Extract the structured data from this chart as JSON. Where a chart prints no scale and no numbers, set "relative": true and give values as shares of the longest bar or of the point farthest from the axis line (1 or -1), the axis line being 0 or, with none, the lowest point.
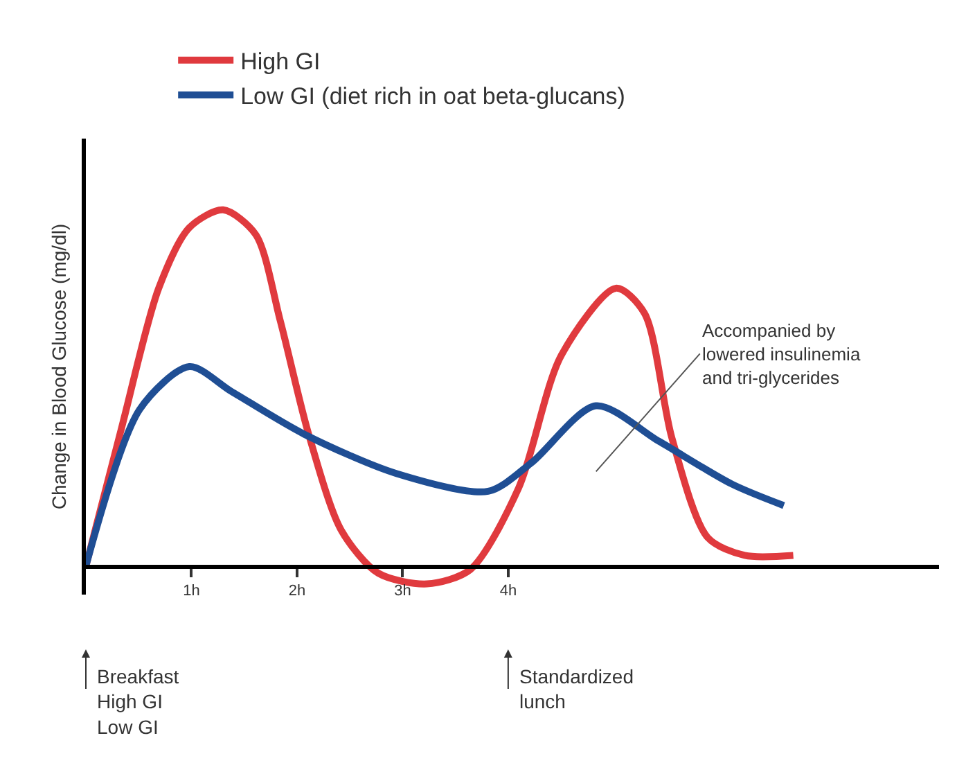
{
  "chart_data": {
    "type": "line",
    "relative": true,
    "ylabel": "Change in Blood Glucose (mg/dl)",
    "legend": "top left",
    "marker": "none",
    "line_style": "solid",
    "xlim": [
      0,
      8.08
    ],
    "xticks": [
      {
        "value": 1,
        "label": "1h"
      },
      {
        "value": 2,
        "label": "2h"
      },
      {
        "value": 3,
        "label": "3h"
      },
      {
        "value": 4,
        "label": "4h"
      }
    ],
    "series": [
      {
        "name": "High GI",
        "color": "#e03a3e",
        "x": [
          0,
          0.34,
          0.69,
          0.98,
          1.3,
          1.61,
          1.84,
          2.11,
          2.42,
          2.77,
          3.23,
          3.64,
          4.1,
          4.5,
          5.02,
          5.29,
          5.55,
          5.89,
          6.24,
          6.7
        ],
        "values": [
          0,
          0.39,
          0.78,
          0.95,
          1.0,
          0.93,
          0.69,
          0.37,
          0.1,
          -0.02,
          -0.05,
          -0.01,
          0.22,
          0.59,
          0.78,
          0.71,
          0.36,
          0.08,
          0.03,
          0.03
        ]
      },
      {
        "name": "Low GI (diet rich in oat beta-glucans)",
        "color": "#1f4e94",
        "x": [
          0,
          0.51,
          0.98,
          1.38,
          2.07,
          2.94,
          3.81,
          4.22,
          4.83,
          5.43,
          6.12,
          6.61
        ],
        "values": [
          0,
          0.44,
          0.56,
          0.49,
          0.37,
          0.26,
          0.21,
          0.29,
          0.45,
          0.35,
          0.23,
          0.17
        ]
      }
    ],
    "annotations": [
      "Accompanied by\nlowered insulinemia\nand tri-glycerides",
      "Breakfast\nHigh GI\nLow GI",
      "Standardized\nlunch"
    ]
  }
}
